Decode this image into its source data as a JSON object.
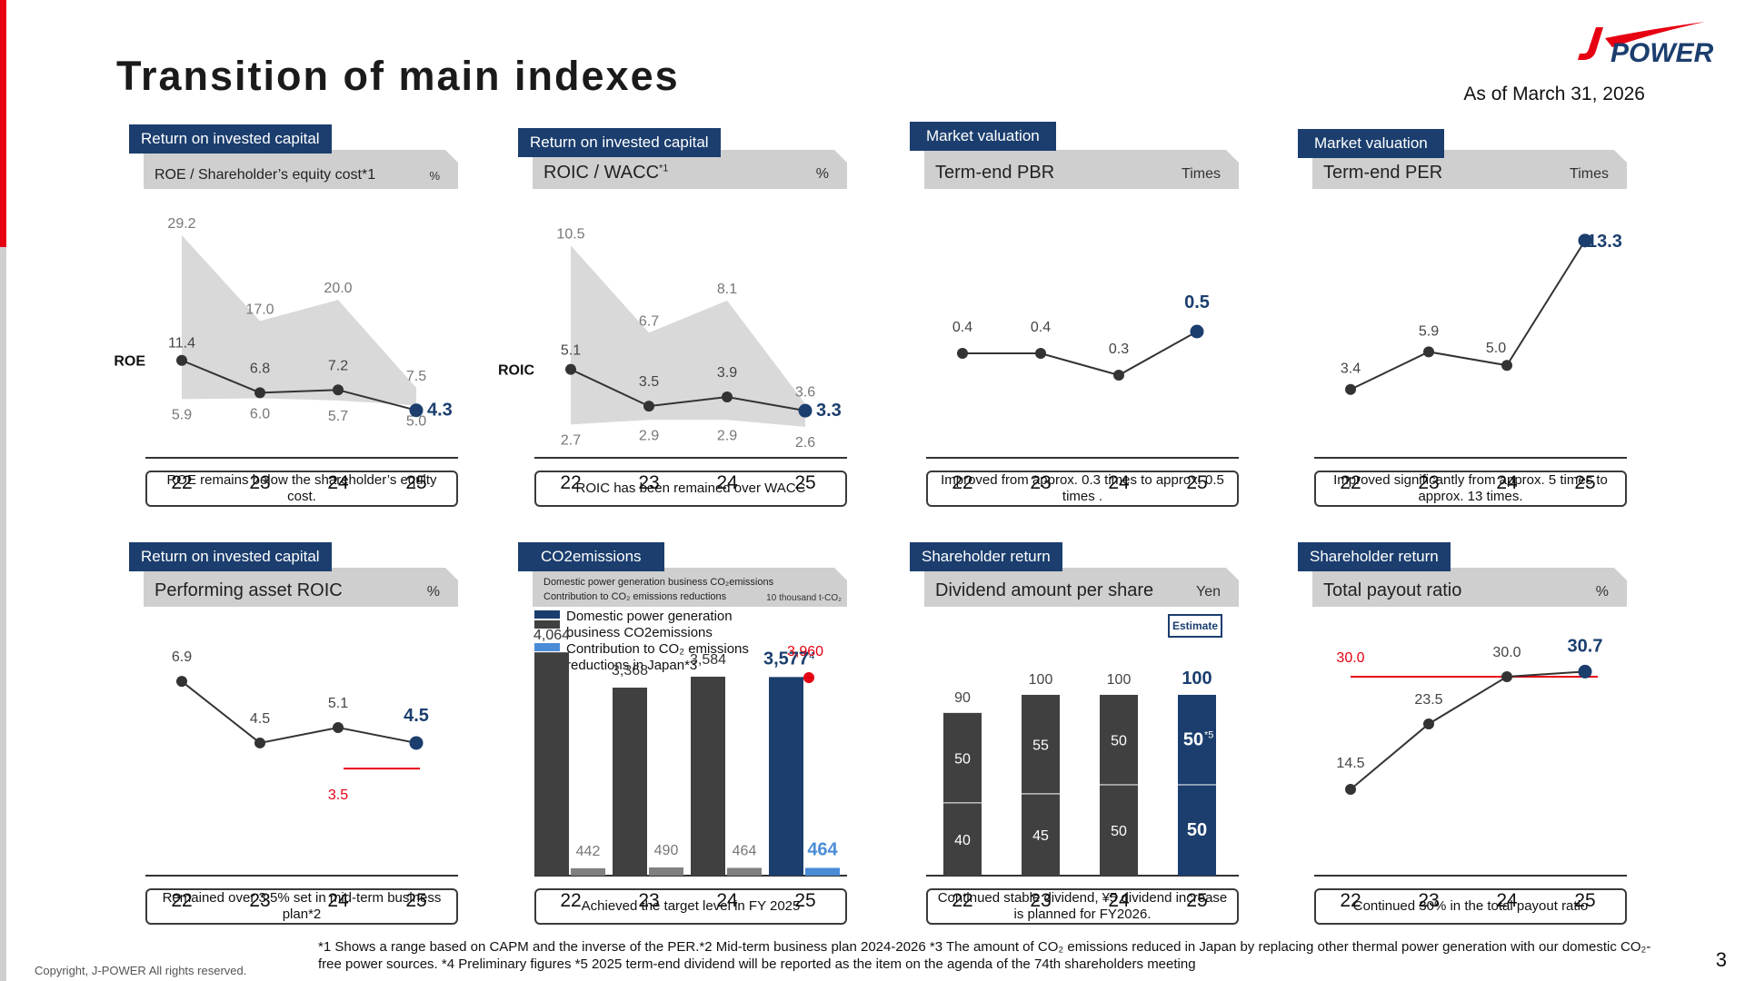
{
  "page": {
    "title": "Transition of main indexes",
    "as_of": "As of March 31, 2026",
    "logo_text": "POWER",
    "copyright": "Copyright, J-POWER All rights reserved.",
    "footnote": "*1 Shows a range based on CAPM and the inverse of the PER.*2 Mid-term business plan 2024-2026 *3 The amount of CO₂ emissions reduced in Japan by replacing other thermal power generation with our domestic CO₂-free power sources. *4 Preliminary figures  *5 2025 term-end dividend will be reported as the item on the agenda of the 74th shareholders meeting",
    "page_number": "3",
    "colors": {
      "navy": "#1b3e6e",
      "red": "#e60012",
      "dark_bar": "#404040",
      "grey_bar": "#808080",
      "light_blue": "#4a8cd6"
    }
  },
  "panels": {
    "roe": {
      "tag": "Return on invested capital",
      "header": "ROE / Shareholder’s equity cost*1",
      "unit": "%",
      "note": "ROE remains below the shareholder’s equity cost.",
      "series_label": "ROE"
    },
    "roic": {
      "tag": "Return on invested capital",
      "header": "ROIC / WACC",
      "header_sup": "*1",
      "unit": "%",
      "note": "ROIC has been remained over WACC",
      "series_label": "ROIC"
    },
    "pbr": {
      "tag": "Market valuation",
      "header": "Term-end PBR",
      "unit": "Times",
      "note": "Improved from approx. 0.3 times  to approx. 0.5 times ."
    },
    "per": {
      "tag": "Market valuation",
      "header": "Term-end PER",
      "unit": "Times",
      "note": "Improved significantly from approx. 5 times to approx. 13 times."
    },
    "asset_roic": {
      "tag": "Return on invested capital",
      "header": "Performing asset ROIC",
      "unit": "%",
      "note": "Remained over 3.5% set in mid-term business plan*2"
    },
    "co2": {
      "tag": "CO2emissions",
      "header_line1": "Domestic power generation business CO₂emissions",
      "header_line2": "Contribution to CO₂ emissions reductions",
      "unit": "10 thousand t-CO₂",
      "legend_1": "Domestic power generation business CO2emissions",
      "legend_2": "Contribution to CO₂ emissions reductions in Japan*3",
      "note": "Achieved the target level in FY 2025"
    },
    "dividend": {
      "tag": "Shareholder return",
      "header": "Dividend amount per share",
      "unit": "Yen",
      "estimate": "Estimate",
      "note": "Continued stable dividend, ¥5 dividend increase is planned for FY2026."
    },
    "payout": {
      "tag": "Shareholder return",
      "header": "Total payout ratio",
      "unit": "%",
      "note": "Continued 30% in the total payout ratio"
    }
  },
  "chart_data": [
    {
      "id": "roe",
      "type": "line",
      "categories": [
        "22",
        "23",
        "24",
        "25"
      ],
      "series": [
        {
          "name": "ROE",
          "values": [
            11.4,
            6.8,
            7.2,
            4.3
          ],
          "labels": [
            "11.4",
            "6.8",
            "7.2",
            "4.3"
          ]
        }
      ],
      "band_upper": [
        29.2,
        17.0,
        20.0,
        7.5
      ],
      "band_upper_labels": [
        "29.2",
        "17.0",
        "20.0",
        "7.5"
      ],
      "band_lower": [
        5.9,
        6.0,
        5.7,
        5.0
      ],
      "band_lower_labels": [
        "5.9",
        "6.0",
        "5.7",
        "5.0"
      ],
      "ylim": [
        0,
        31
      ]
    },
    {
      "id": "roic",
      "type": "line",
      "categories": [
        "22",
        "23",
        "24",
        "25"
      ],
      "series": [
        {
          "name": "ROIC",
          "values": [
            5.1,
            3.5,
            3.9,
            3.3
          ],
          "labels": [
            "5.1",
            "3.5",
            "3.9",
            "3.3"
          ]
        }
      ],
      "band_upper": [
        10.5,
        6.7,
        8.1,
        3.6
      ],
      "band_upper_labels": [
        "10.5",
        "6.7",
        "8.1",
        "3.6"
      ],
      "band_lower": [
        2.7,
        2.9,
        2.9,
        2.6
      ],
      "band_lower_labels": [
        "2.7",
        "2.9",
        "2.9",
        "2.6"
      ],
      "ylim": [
        2.0,
        11.5
      ]
    },
    {
      "id": "pbr",
      "type": "line",
      "categories": [
        "22",
        "23",
        "24",
        "25"
      ],
      "series": [
        {
          "values": [
            0.4,
            0.4,
            0.3,
            0.5
          ],
          "labels": [
            "0.4",
            "0.4",
            "0.3",
            "0.5"
          ]
        }
      ],
      "ylim": [
        0,
        1.0
      ]
    },
    {
      "id": "per",
      "type": "line",
      "categories": [
        "22",
        "23",
        "24",
        "25"
      ],
      "series": [
        {
          "values": [
            3.4,
            5.9,
            5.0,
            13.3
          ],
          "labels": [
            "3.4",
            "5.9",
            "5.0",
            "13.3"
          ]
        }
      ],
      "ylim": [
        0,
        14.5
      ]
    },
    {
      "id": "asset_roic",
      "type": "line",
      "categories": [
        "22",
        "23",
        "24",
        "25"
      ],
      "series": [
        {
          "values": [
            6.9,
            4.5,
            5.1,
            4.5
          ],
          "labels": [
            "6.9",
            "4.5",
            "5.1",
            "4.5"
          ]
        }
      ],
      "target": 3.5,
      "target_label": "3.5",
      "ylim": [
        0,
        8.5
      ]
    },
    {
      "id": "co2",
      "type": "bar",
      "categories": [
        "22",
        "23",
        "24",
        "25"
      ],
      "series": [
        {
          "name": "Domestic power generation business CO2emissions",
          "values": [
            4064,
            3368,
            3584,
            3577
          ],
          "labels": [
            "4,064",
            "3,368",
            "3,584",
            "3,577"
          ],
          "last_label_sup": "*4"
        },
        {
          "name": "Contribution to CO₂ emissions reductions in Japan",
          "values": [
            442,
            490,
            464,
            464
          ],
          "labels": [
            "442",
            "490",
            "464",
            "464"
          ]
        }
      ],
      "target": 3960,
      "target_label": "3,960",
      "ylim": [
        0,
        4300
      ]
    },
    {
      "id": "dividend",
      "type": "bar",
      "stacked": true,
      "categories": [
        "22",
        "23",
        "24",
        "25"
      ],
      "series": [
        {
          "values": [
            40,
            45,
            50,
            50
          ],
          "labels": [
            "40",
            "45",
            "50",
            "50"
          ]
        },
        {
          "values": [
            50,
            55,
            50,
            50
          ],
          "labels": [
            "50",
            "55",
            "50",
            "50"
          ],
          "last_label_sup": "*5"
        }
      ],
      "totals": [
        90,
        100,
        100,
        100
      ],
      "total_labels": [
        "90",
        "100",
        "100",
        "100"
      ],
      "ylim": [
        0,
        105
      ]
    },
    {
      "id": "payout",
      "type": "line",
      "categories": [
        "22",
        "23",
        "24",
        "25"
      ],
      "series": [
        {
          "values": [
            14.5,
            23.5,
            30.0,
            30.7
          ],
          "labels": [
            "14.5",
            "23.5",
            "30.0",
            "30.7"
          ]
        }
      ],
      "target": 30.0,
      "target_label": "30.0",
      "ylim": [
        5,
        35
      ]
    }
  ]
}
